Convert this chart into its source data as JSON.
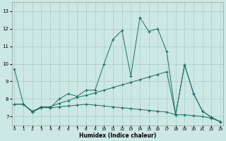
{
  "xlabel": "Humidex (Indice chaleur)",
  "background_color": "#cce8e4",
  "grid_color": "#aaccc8",
  "line_color": "#1a6e64",
  "x_ticks": [
    0,
    1,
    2,
    3,
    4,
    5,
    6,
    7,
    8,
    9,
    10,
    11,
    12,
    13,
    14,
    15,
    16,
    17,
    18,
    19,
    20,
    21,
    22,
    23
  ],
  "y_ticks": [
    7,
    8,
    9,
    10,
    11,
    12,
    13
  ],
  "xlim": [
    -0.3,
    23.3
  ],
  "ylim": [
    6.5,
    13.5
  ],
  "series1": {
    "x": [
      0,
      1,
      2,
      3,
      4,
      5,
      6,
      7,
      8,
      9,
      10,
      11,
      12,
      13,
      14,
      15,
      16,
      17,
      18,
      19,
      20,
      21,
      22,
      23
    ],
    "y": [
      9.7,
      7.7,
      7.25,
      7.55,
      7.5,
      8.0,
      8.3,
      8.15,
      8.5,
      8.5,
      10.0,
      11.4,
      11.9,
      9.3,
      12.65,
      11.85,
      12.0,
      10.7,
      7.1,
      9.95,
      8.3,
      7.3,
      6.95,
      6.7
    ]
  },
  "series2": {
    "x": [
      0,
      1,
      2,
      3,
      4,
      5,
      6,
      7,
      8,
      9,
      10,
      11,
      12,
      13,
      14,
      15,
      16,
      17,
      18,
      19,
      20,
      21,
      22,
      23
    ],
    "y": [
      7.7,
      7.7,
      7.3,
      7.55,
      7.55,
      7.75,
      7.9,
      8.1,
      8.2,
      8.35,
      8.5,
      8.65,
      8.8,
      8.95,
      9.1,
      9.25,
      9.4,
      9.55,
      7.1,
      9.95,
      8.3,
      7.3,
      6.95,
      6.7
    ]
  },
  "series3": {
    "x": [
      0,
      1,
      2,
      3,
      4,
      5,
      6,
      7,
      8,
      9,
      10,
      11,
      12,
      13,
      14,
      15,
      16,
      17,
      18,
      19,
      20,
      21,
      22,
      23
    ],
    "y": [
      7.7,
      7.7,
      7.25,
      7.5,
      7.5,
      7.55,
      7.6,
      7.65,
      7.7,
      7.65,
      7.6,
      7.55,
      7.5,
      7.45,
      7.4,
      7.35,
      7.3,
      7.25,
      7.1,
      7.1,
      7.05,
      7.0,
      6.9,
      6.7
    ]
  }
}
